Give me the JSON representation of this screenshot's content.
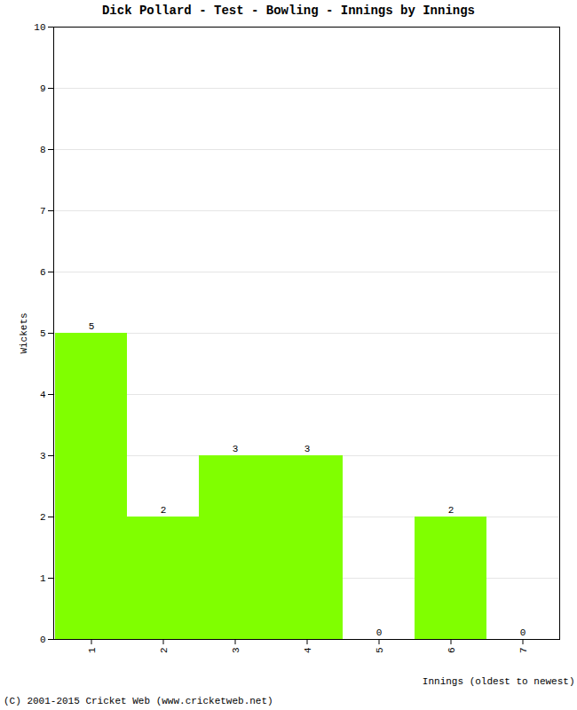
{
  "chart_data": {
    "type": "bar",
    "title": "Dick Pollard - Test - Bowling - Innings by Innings",
    "x_label": "Innings (oldest to newest)",
    "y_label": "Wickets",
    "categories": [
      "1",
      "2",
      "3",
      "4",
      "5",
      "6",
      "7"
    ],
    "values": [
      5,
      2,
      3,
      3,
      0,
      2,
      0
    ],
    "color": "#80ff00",
    "ylim": [
      0,
      10
    ],
    "yticks": [
      0,
      1,
      2,
      3,
      4,
      5,
      6,
      7,
      8,
      9,
      10
    ],
    "grid": true,
    "data_labels": true,
    "annotations": [
      "(C) 2001-2015 Cricket Web (www.cricketweb.net)"
    ]
  }
}
